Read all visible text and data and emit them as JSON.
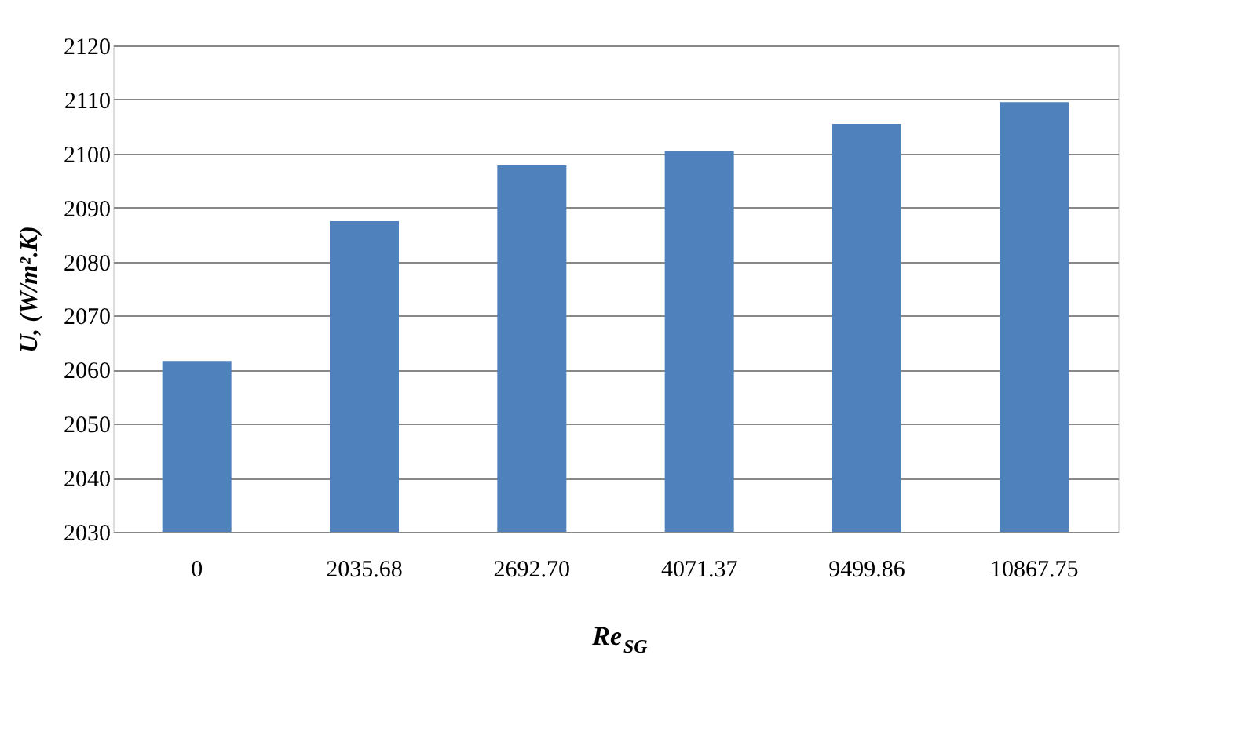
{
  "chart_data": {
    "type": "bar",
    "xlabel": "Re$_{SG}$",
    "ylabel": "U, (W/m².K)",
    "categories": [
      "0",
      "2035.68",
      "2692.70",
      "4071.37",
      "9499.86",
      "10867.75"
    ],
    "values": [
      2061.6,
      2087.5,
      2097.8,
      2100.5,
      2105.5,
      2109.5
    ],
    "color": "#4f81bd",
    "ylim": [
      2030,
      2120
    ],
    "yticks": [
      2030,
      2040,
      2050,
      2060,
      2070,
      2080,
      2090,
      2100,
      2110,
      2120
    ],
    "grid": "y"
  }
}
